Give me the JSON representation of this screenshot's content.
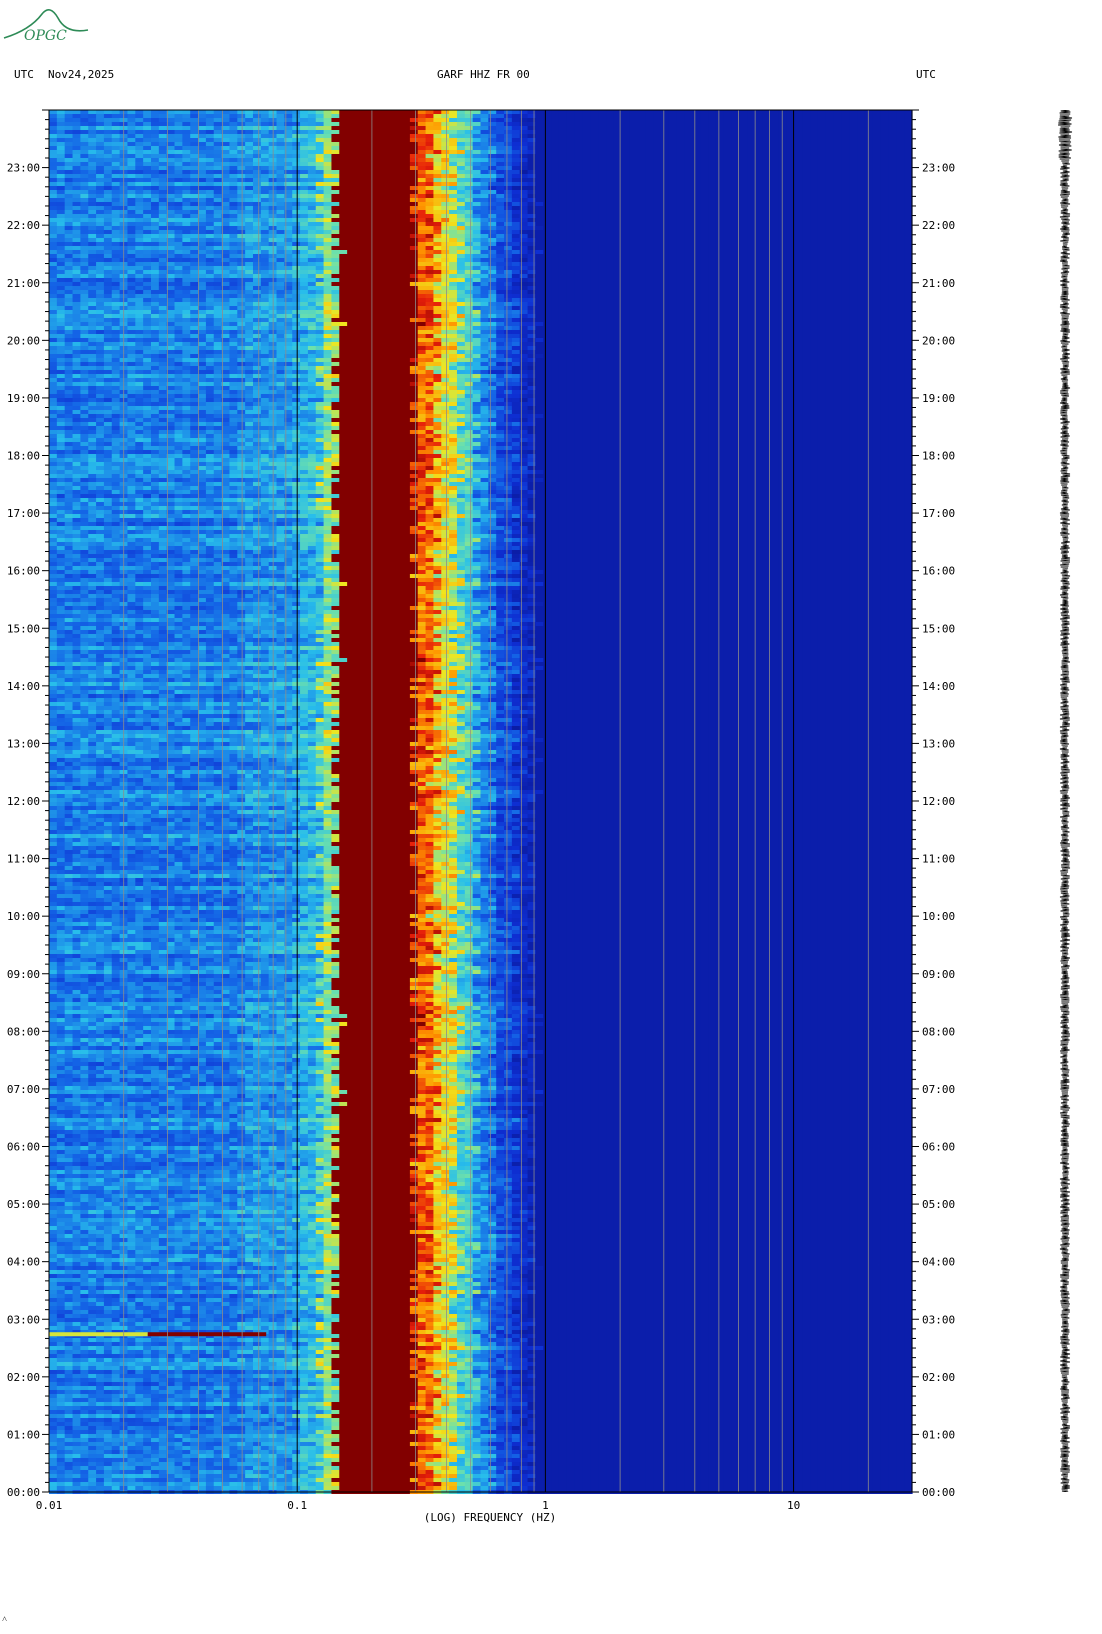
{
  "logo": {
    "text": "OPGC",
    "color": "#2e8b57"
  },
  "header": {
    "left_utc": "UTC",
    "date": "Nov24,2025",
    "station": "GARF HHZ FR 00",
    "right_utc": "UTC"
  },
  "footer": {
    "mark": "˄"
  },
  "colors": {
    "background_blue": "#0a1aa0",
    "cool": "#1464e6",
    "cyan": "#28d2e6",
    "yellow": "#f0e61e",
    "orange": "#ff6a00",
    "red": "#e61e0a",
    "dark_red": "#820000"
  },
  "chart_data": {
    "type": "heatmap",
    "title": "GARF HHZ FR 00",
    "xlabel": "(LOG) FREQUENCY (HZ)",
    "x_scale": "log",
    "x_range": [
      0.01,
      30
    ],
    "x_ticks": [
      "0.01",
      "0.1",
      "1",
      "10"
    ],
    "y_ticks": [
      "00:00",
      "01:00",
      "02:00",
      "03:00",
      "04:00",
      "05:00",
      "06:00",
      "07:00",
      "08:00",
      "09:00",
      "10:00",
      "11:00",
      "12:00",
      "13:00",
      "14:00",
      "15:00",
      "16:00",
      "17:00",
      "18:00",
      "19:00",
      "20:00",
      "21:00",
      "22:00",
      "23:00"
    ],
    "y_range_hours": [
      0,
      24
    ],
    "microseism_peak_hz": [
      0.14,
      0.3
    ],
    "event_hour": 2.74,
    "legend": "none"
  }
}
